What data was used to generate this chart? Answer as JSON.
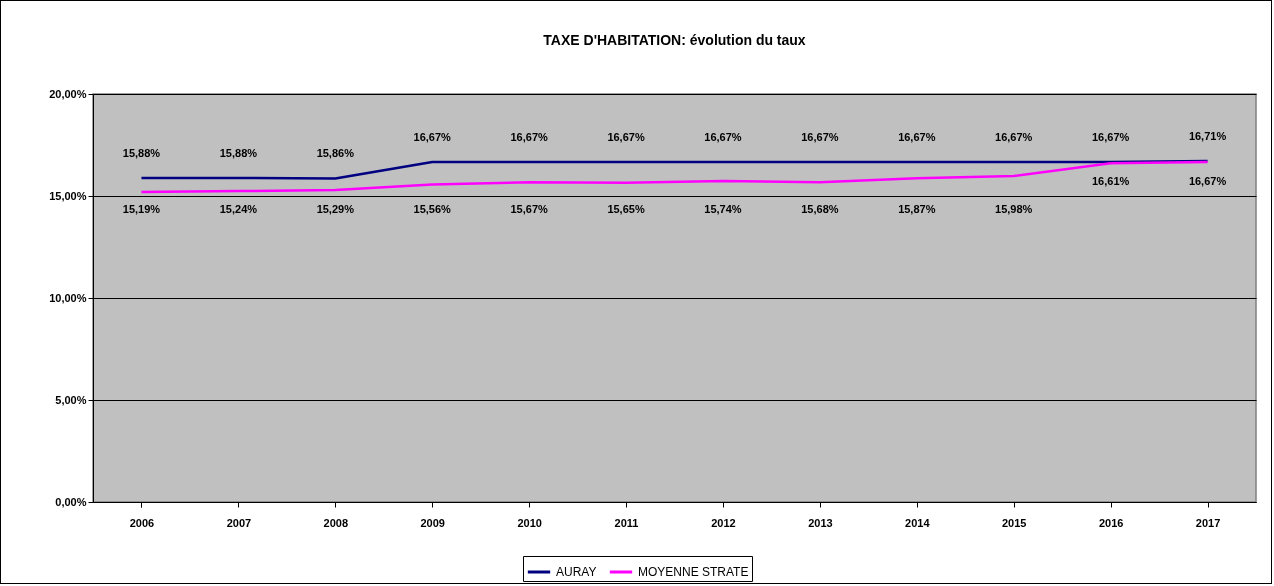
{
  "chart_data": {
    "type": "line",
    "title": "TAXE D'HABITATION:  évolution du taux",
    "categories": [
      "2006",
      "2007",
      "2008",
      "2009",
      "2010",
      "2011",
      "2012",
      "2013",
      "2014",
      "2015",
      "2016",
      "2017"
    ],
    "series": [
      {
        "name": "AURAY",
        "color": "#000080",
        "values": [
          15.88,
          15.88,
          15.86,
          16.67,
          16.67,
          16.67,
          16.67,
          16.67,
          16.67,
          16.67,
          16.67,
          16.71
        ],
        "value_labels": [
          "15,88%",
          "15,88%",
          "15,86%",
          "16,67%",
          "16,67%",
          "16,67%",
          "16,67%",
          "16,67%",
          "16,67%",
          "16,67%",
          "16,67%",
          "16,71%"
        ]
      },
      {
        "name": "MOYENNE STRATE",
        "color": "#ff00ff",
        "values": [
          15.19,
          15.24,
          15.29,
          15.56,
          15.67,
          15.65,
          15.74,
          15.68,
          15.87,
          15.98,
          16.61,
          16.67
        ],
        "value_labels": [
          "15,19%",
          "15,24%",
          "15,29%",
          "15,56%",
          "15,67%",
          "15,65%",
          "15,74%",
          "15,68%",
          "15,87%",
          "15,98%",
          "16,61%",
          "16,67%"
        ]
      }
    ],
    "ylim": [
      0,
      20
    ],
    "yticks": [
      {
        "value": 0,
        "label": "0,00%"
      },
      {
        "value": 5,
        "label": "5,00%"
      },
      {
        "value": 10,
        "label": "10,00%"
      },
      {
        "value": 15,
        "label": "15,00%"
      },
      {
        "value": 20,
        "label": "20,00%"
      }
    ],
    "grid": "y",
    "legend": "bottom",
    "marker": "none"
  }
}
